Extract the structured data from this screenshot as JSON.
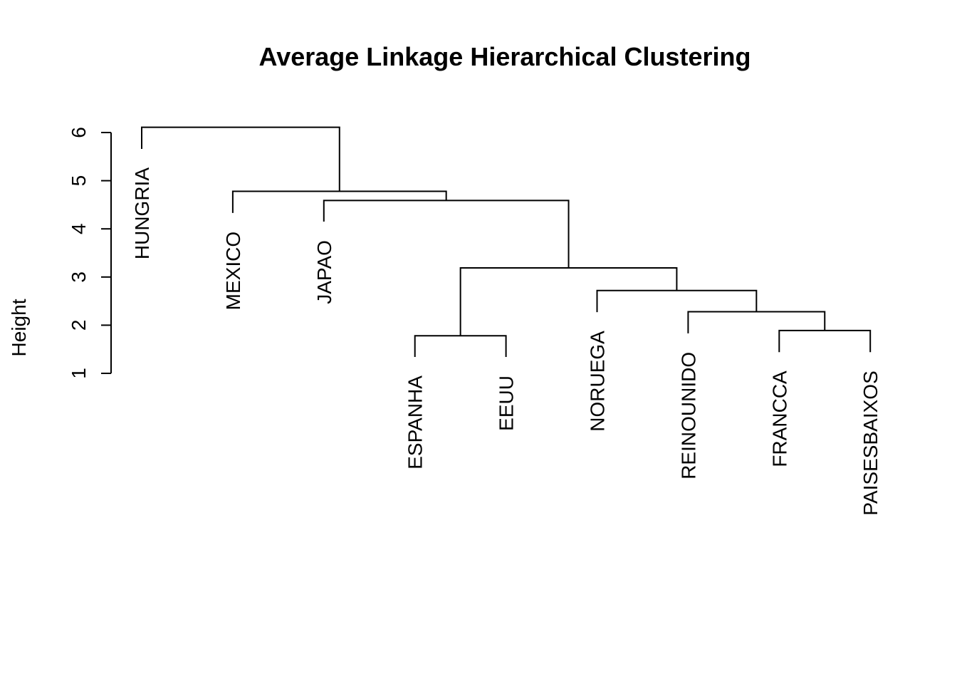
{
  "chart_data": {
    "type": "dendrogram",
    "title": "Average Linkage Hierarchical Clustering",
    "ylabel": "Height",
    "ylim": [
      1,
      6
    ],
    "yticks": [
      "1",
      "2",
      "3",
      "4",
      "5",
      "6"
    ],
    "leaves": [
      "HUNGRIA",
      "MEXICO",
      "JAPAO",
      "ESPANHA",
      "EEUU",
      "NORUEGA",
      "REINOUNIDO",
      "FRANCCA",
      "PAISESBAIXOS"
    ],
    "merges": [
      {
        "left": "FRANCCA",
        "right": "PAISESBAIXOS",
        "height": 1.89
      },
      {
        "left": "ESPANHA",
        "right": "EEUU",
        "height": 1.78
      },
      {
        "left": "REINOUNIDO",
        "right": "FRANCCA+PAISESBAIXOS",
        "height": 2.28
      },
      {
        "left": "NORUEGA",
        "right": "REINOUNIDO+FRANCCA+PAISESBAIXOS",
        "height": 2.72
      },
      {
        "left": "ESPANHA+EEUU",
        "right": "NORUEGA+REINOUNIDO+FRANCCA+PAISESBAIXOS",
        "height": 3.19
      },
      {
        "left": "JAPAO",
        "right": "ESPANHA+EEUU+NORUEGA+REINOUNIDO+FRANCCA+PAISESBAIXOS",
        "height": 4.59
      },
      {
        "left": "MEXICO",
        "right": "JAPAO+ESPANHA+EEUU+NORUEGA+REINOUNIDO+FRANCCA+PAISESBAIXOS",
        "height": 4.78
      },
      {
        "left": "HUNGRIA",
        "right": "MEXICO+JAPAO+ESPANHA+EEUU+NORUEGA+REINOUNIDO+FRANCCA+PAISESBAIXOS",
        "height": 6.11
      }
    ],
    "leaf_heights": {
      "HUNGRIA": 5.66,
      "MEXICO": 4.33,
      "JAPAO": 4.15,
      "ESPANHA": 1.34,
      "EEUU": 1.34,
      "NORUEGA": 2.27,
      "REINOUNIDO": 1.83,
      "FRANCCA": 1.44,
      "PAISESBAIXOS": 1.44
    },
    "grid": false
  }
}
